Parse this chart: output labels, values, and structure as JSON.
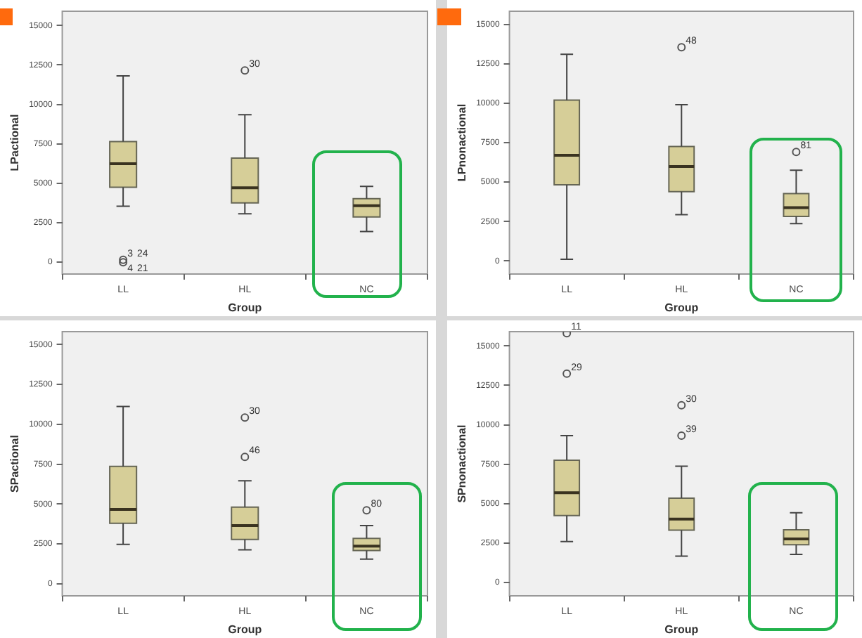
{
  "chart_data": [
    {
      "type": "box",
      "xlabel": "Group",
      "ylabel": "LPactional",
      "categories": [
        "LL",
        "HL",
        "NC"
      ],
      "ylim": [
        -750,
        15900
      ],
      "yticks": [
        0,
        2500,
        5000,
        7500,
        10000,
        12500,
        15000
      ],
      "grid": false,
      "marker": "circle",
      "series": [
        {
          "color": "#d6ce98",
          "boxes": [
            {
              "low": 3550,
              "q1": 4750,
              "median": 6240,
              "q3": 7640,
              "high": 11800
            },
            {
              "low": 3070,
              "q1": 3760,
              "median": 4720,
              "q3": 6600,
              "high": 9340
            },
            {
              "low": 1940,
              "q1": 2870,
              "median": 3580,
              "q3": 4030,
              "high": 4800
            }
          ]
        },
        {
          "type": "scatter",
          "color": "#555555",
          "x": [
            "LL",
            "LL",
            "HL"
          ],
          "values": [
            0,
            150,
            12150
          ]
        }
      ],
      "annotations": [
        {
          "text": "3",
          "x": "LL",
          "y": 150
        },
        {
          "text": "24",
          "x": "LL",
          "y": 150
        },
        {
          "text": "4",
          "x": "LL",
          "y": 0
        },
        {
          "text": "21",
          "x": "LL",
          "y": 0
        },
        {
          "text": "30",
          "x": "HL",
          "y": 12150
        }
      ]
    },
    {
      "type": "box",
      "xlabel": "Group",
      "ylabel": "LPnonactional",
      "categories": [
        "LL",
        "HL",
        "NC"
      ],
      "ylim": [
        -830,
        15830
      ],
      "yticks": [
        0,
        2500,
        5000,
        7500,
        10000,
        12500,
        15000
      ],
      "grid": false,
      "marker": "circle",
      "series": [
        {
          "color": "#d6ce98",
          "boxes": [
            {
              "low": 100,
              "q1": 4830,
              "median": 6700,
              "q3": 10200,
              "high": 13100
            },
            {
              "low": 2930,
              "q1": 4390,
              "median": 5990,
              "q3": 7260,
              "high": 9900
            },
            {
              "low": 2370,
              "q1": 2820,
              "median": 3380,
              "q3": 4270,
              "high": 5750
            }
          ]
        },
        {
          "type": "scatter",
          "color": "#555555",
          "x": [
            "HL",
            "NC"
          ],
          "values": [
            13550,
            6910
          ]
        }
      ],
      "annotations": [
        {
          "text": "48",
          "x": "HL",
          "y": 13550
        },
        {
          "text": "81",
          "x": "NC",
          "y": 6910
        }
      ]
    },
    {
      "type": "box",
      "xlabel": "Group",
      "ylabel": "SPactional",
      "categories": [
        "LL",
        "HL",
        "NC"
      ],
      "ylim": [
        -760,
        15810
      ],
      "yticks": [
        0,
        2500,
        5000,
        7500,
        10000,
        12500,
        15000
      ],
      "grid": false,
      "marker": "circle",
      "series": [
        {
          "color": "#d6ce98",
          "boxes": [
            {
              "low": 2470,
              "q1": 3790,
              "median": 4660,
              "q3": 7360,
              "high": 11120
            },
            {
              "low": 2130,
              "q1": 2780,
              "median": 3650,
              "q3": 4800,
              "high": 6460
            },
            {
              "low": 1540,
              "q1": 2080,
              "median": 2360,
              "q3": 2840,
              "high": 3650
            }
          ]
        },
        {
          "type": "scatter",
          "color": "#555555",
          "x": [
            "HL",
            "HL",
            "NC"
          ],
          "values": [
            7950,
            10420,
            4610
          ]
        }
      ],
      "annotations": [
        {
          "text": "30",
          "x": "HL",
          "y": 10420
        },
        {
          "text": "46",
          "x": "HL",
          "y": 7950
        },
        {
          "text": "80",
          "x": "NC",
          "y": 4610
        }
      ]
    },
    {
      "type": "box",
      "xlabel": "Group",
      "ylabel": "SPnonactional",
      "categories": [
        "LL",
        "HL",
        "NC"
      ],
      "ylim": [
        -840,
        15900
      ],
      "yticks": [
        0,
        2500,
        5000,
        7500,
        10000,
        12500,
        15000
      ],
      "grid": false,
      "marker": "circle",
      "series": [
        {
          "color": "#d6ce98",
          "boxes": [
            {
              "low": 2600,
              "q1": 4250,
              "median": 5690,
              "q3": 7750,
              "high": 9310
            },
            {
              "low": 1680,
              "q1": 3320,
              "median": 4020,
              "q3": 5350,
              "high": 7370
            },
            {
              "low": 1790,
              "q1": 2400,
              "median": 2770,
              "q3": 3350,
              "high": 4420
            }
          ]
        },
        {
          "type": "scatter",
          "color": "#555555",
          "x": [
            "LL",
            "LL",
            "HL",
            "HL"
          ],
          "values": [
            13240,
            15800,
            9310,
            11240
          ]
        }
      ],
      "annotations": [
        {
          "text": "11",
          "x": "LL",
          "y": 15800
        },
        {
          "text": "29",
          "x": "LL",
          "y": 13240
        },
        {
          "text": "30",
          "x": "HL",
          "y": 11240
        },
        {
          "text": "39",
          "x": "HL",
          "y": 9310
        }
      ]
    }
  ]
}
